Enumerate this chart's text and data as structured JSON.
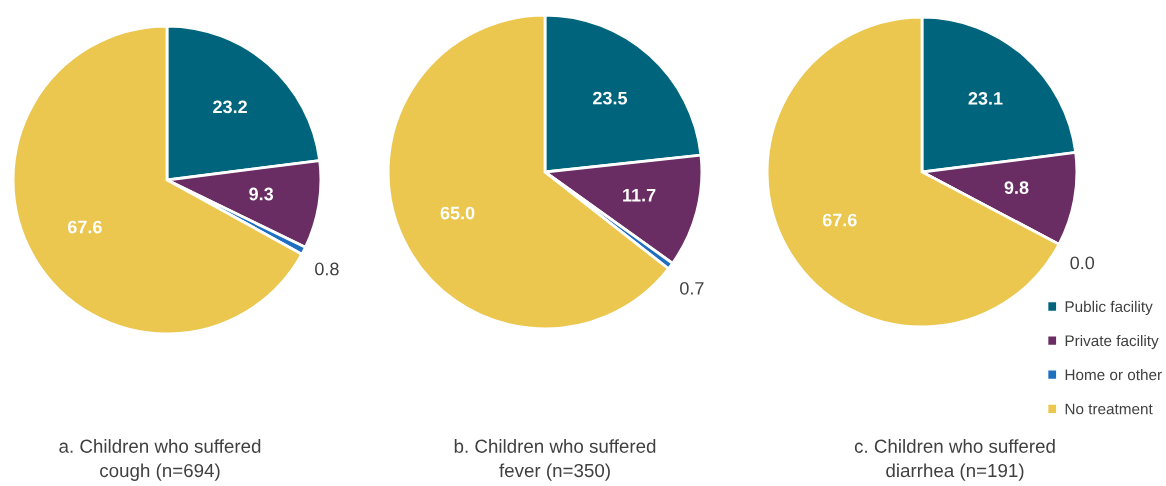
{
  "chart_data": [
    {
      "type": "pie",
      "title": "a. Children who suffered\ncough (n=694)",
      "categories": [
        null,
        null,
        null,
        null
      ],
      "values": [
        23.2,
        9.3,
        0.8,
        67.6
      ],
      "value_labels": [
        "23.2",
        "9.3",
        "0.8",
        "67.6"
      ],
      "colors": [
        "#00657c",
        "#6a2d63",
        "#1f6fc0",
        "#ebc74f"
      ]
    },
    {
      "type": "pie",
      "title": "b. Children who suffered\nfever (n=350)",
      "categories": [
        null,
        null,
        null,
        null
      ],
      "values": [
        23.5,
        11.7,
        0.7,
        65.0
      ],
      "value_labels": [
        "23.5",
        "11.7",
        "0.7",
        "65.0"
      ],
      "colors": [
        "#00657c",
        "#6a2d63",
        "#1f6fc0",
        "#ebc74f"
      ]
    },
    {
      "type": "pie",
      "title": "c. Children who suffered\ndiarrhea (n=191)",
      "categories": [
        "Public facility",
        "Private facility",
        "Home or other",
        "No treatment"
      ],
      "values": [
        23.1,
        9.8,
        0.0,
        67.6
      ],
      "value_labels": [
        "23.1",
        "9.8",
        "0.0",
        "67.6"
      ],
      "colors": [
        "#00657c",
        "#6a2d63",
        "#1f6fc0",
        "#ebc74f"
      ],
      "legend": "bottom right"
    }
  ]
}
